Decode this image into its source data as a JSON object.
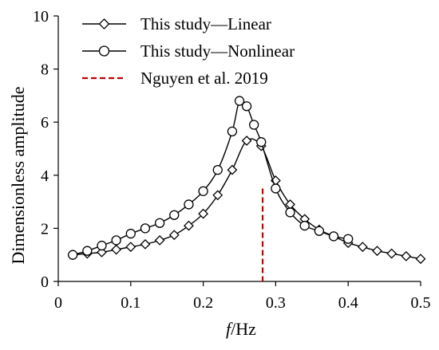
{
  "chart_data": {
    "type": "line",
    "title": "",
    "xlabel_italic": "f",
    "xlabel_rest": "/Hz",
    "ylabel": "Dimensionless amplitude",
    "xlim": [
      0,
      0.5
    ],
    "ylim": [
      0,
      10
    ],
    "xticks": [
      0,
      0.1,
      0.2,
      0.3,
      0.4,
      0.5
    ],
    "xtick_labels": [
      "0",
      "0.1",
      "0.2",
      "0.3",
      "0.4",
      "0.5"
    ],
    "yticks": [
      0,
      2,
      4,
      6,
      8,
      10
    ],
    "ytick_labels": [
      "0",
      "2",
      "4",
      "6",
      "8",
      "10"
    ],
    "grid": false,
    "legend_position": "top-left",
    "series": [
      {
        "name": "This study—Linear",
        "marker": "diamond",
        "color": "#000000",
        "x": [
          0.02,
          0.04,
          0.06,
          0.08,
          0.1,
          0.12,
          0.14,
          0.16,
          0.18,
          0.2,
          0.22,
          0.24,
          0.26,
          0.28,
          0.3,
          0.32,
          0.34,
          0.36,
          0.38,
          0.4,
          0.42,
          0.44,
          0.46,
          0.48,
          0.5
        ],
        "y": [
          1.0,
          1.05,
          1.1,
          1.2,
          1.3,
          1.4,
          1.55,
          1.75,
          2.1,
          2.55,
          3.25,
          4.2,
          5.3,
          5.1,
          3.8,
          2.9,
          2.35,
          1.95,
          1.7,
          1.45,
          1.3,
          1.15,
          1.05,
          0.95,
          0.85
        ]
      },
      {
        "name": "This study—Nonlinear",
        "marker": "circle",
        "color": "#000000",
        "x": [
          0.02,
          0.04,
          0.06,
          0.08,
          0.1,
          0.12,
          0.14,
          0.16,
          0.18,
          0.2,
          0.22,
          0.24,
          0.25,
          0.26,
          0.27,
          0.28,
          0.3,
          0.32,
          0.34,
          0.36,
          0.38,
          0.4
        ],
        "y": [
          1.0,
          1.15,
          1.35,
          1.55,
          1.8,
          2.0,
          2.2,
          2.5,
          2.9,
          3.4,
          4.2,
          5.65,
          6.8,
          6.6,
          5.9,
          5.25,
          3.5,
          2.6,
          2.1,
          1.9,
          1.7,
          1.6
        ]
      },
      {
        "name": "Nguyen et al. 2019",
        "type": "vline",
        "style": "dashed",
        "color": "#c00000",
        "x_value": 0.282
      }
    ]
  }
}
